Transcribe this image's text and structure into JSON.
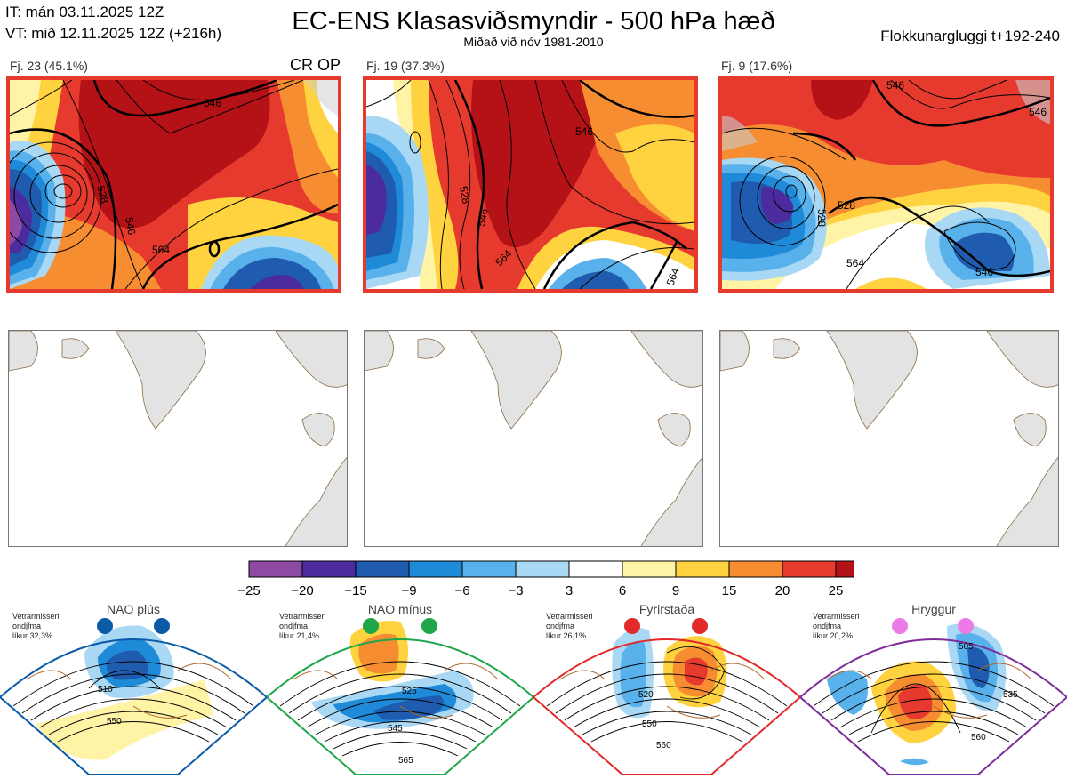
{
  "header": {
    "it_line": "IT: mán 03.11.2025 12Z",
    "vt_line": "VT: mið 12.11.2025 12Z  (+216h)",
    "title": "EC-ENS Klasasviðsmyndir - 500 hPa hæð",
    "subtitle": "Miðað við nóv 1981-2010",
    "window": "Flokkunargluggi t+192-240"
  },
  "panels": [
    {
      "label": "Fj. 23 (45.1%)",
      "tag": "CR OP",
      "contours": [
        "546",
        "546",
        "528",
        "564"
      ]
    },
    {
      "label": "Fj. 19 (37.3%)",
      "tag": "",
      "contours": [
        "546",
        "528",
        "546",
        "564",
        "564"
      ]
    },
    {
      "label": "Fj. 9 (17.6%)",
      "tag": "",
      "contours": [
        "528",
        "546",
        "546",
        "528",
        "564",
        "546"
      ]
    }
  ],
  "chart_data": {
    "type": "heatmap",
    "title": "EC-ENS Klasasviðsmyndir - 500 hPa hæð",
    "subtitle": "Miðað við nóv 1981-2010",
    "colorbar": {
      "ticks": [
        "−25",
        "−20",
        "−15",
        "−9",
        "−6",
        "−3",
        "3",
        "6",
        "9",
        "15",
        "20",
        "25"
      ],
      "colors": [
        "#8e4aa3",
        "#4c2b9e",
        "#1f5cb0",
        "#1f8ad8",
        "#58b1ea",
        "#a9d8f5",
        "#ffffff",
        "#fff3a6",
        "#ffd23f",
        "#f68d31",
        "#e63a2f",
        "#b51218"
      ]
    },
    "clusters": [
      {
        "label": "Fj. 23 (45.1%)",
        "members": 23,
        "percent": 45.1
      },
      {
        "label": "Fj. 19 (37.3%)",
        "members": 19,
        "percent": 37.3
      },
      {
        "label": "Fj. 9 (17.6%)",
        "members": 9,
        "percent": 17.6
      }
    ]
  },
  "regimes": [
    {
      "name": "NAO plús",
      "note_1": "Vetrarmisseri",
      "note_2": "ondjfma",
      "note_3": "líkur 32,3%",
      "color": "#0a5aa8",
      "labels": [
        "510",
        "550"
      ]
    },
    {
      "name": "NAO mínus",
      "note_1": "Vetrarmisseri",
      "note_2": "ondjfma",
      "note_3": "líkur 21,4%",
      "color": "#1fa64a",
      "labels": [
        "525",
        "545",
        "565"
      ]
    },
    {
      "name": "Fyrirstaða",
      "note_1": "Vetrarmisseri",
      "note_2": "ondjfma",
      "note_3": "líkur 26,1%",
      "color": "#e22a2a",
      "labels": [
        "520",
        "550",
        "560"
      ]
    },
    {
      "name": "Hryggur",
      "note_1": "Vetrarmisseri",
      "note_2": "ondjfma",
      "note_3": "líkur 20,2%",
      "color": "#7d2c9a",
      "labels": [
        "505",
        "535",
        "560"
      ]
    }
  ]
}
